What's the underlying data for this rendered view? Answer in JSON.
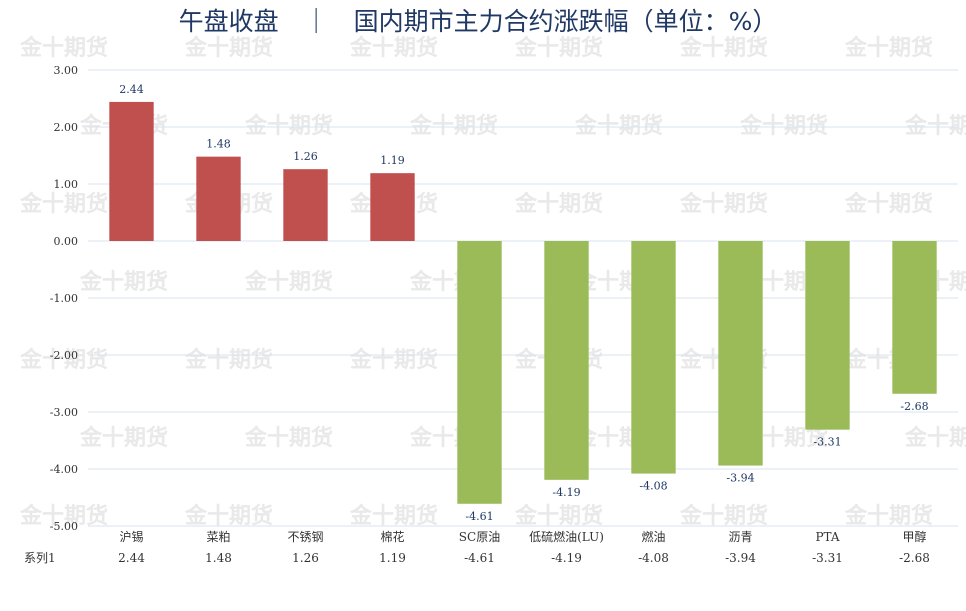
{
  "chart_data": {
    "type": "bar",
    "title": "午盘收盘　｜　国内期市主力合约涨跌幅（单位：%）",
    "categories": [
      "沪锡",
      "菜粕",
      "不锈钢",
      "棉花",
      "SC原油",
      "低硫燃油(LU)",
      "燃油",
      "沥青",
      "PTA",
      "甲醇"
    ],
    "series": [
      {
        "name": "系列1",
        "values": [
          2.44,
          1.48,
          1.26,
          1.19,
          -4.61,
          -4.19,
          -4.08,
          -3.94,
          -3.31,
          -2.68
        ]
      }
    ],
    "value_labels": [
      "2.44",
      "1.48",
      "1.26",
      "1.19",
      "-4.61",
      "-4.19",
      "-4.08",
      "-3.94",
      "-3.31",
      "-2.68"
    ],
    "table_values": [
      "2.44",
      "1.48",
      "1.26",
      "1.19",
      "-4.61",
      "-4.19",
      "-4.08",
      "-3.94",
      "-3.31",
      "-2.68"
    ],
    "ylim": [
      -5,
      3
    ],
    "yticks": [
      3,
      2,
      1,
      0,
      -1,
      -2,
      -3,
      -4,
      -5
    ],
    "ytick_labels": [
      "3.00",
      "2.00",
      "1.00",
      "0.00",
      "-1.00",
      "-2.00",
      "-3.00",
      "-4.00",
      "-5.00"
    ],
    "grid": true,
    "legend": "data-table-below",
    "colors": {
      "positive": "#c0504d",
      "negative": "#9bbb59",
      "grid": "#d9e2ef"
    }
  },
  "watermark": "金十期货"
}
